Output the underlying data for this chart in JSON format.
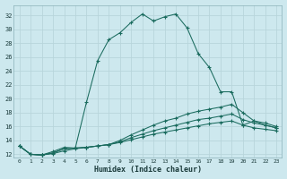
{
  "xlabel": "Humidex (Indice chaleur)",
  "background_color": "#cde8ee",
  "grid_color": "#b8d5db",
  "line_color": "#1a6b5e",
  "xlim": [
    -0.5,
    23.5
  ],
  "ylim": [
    11.5,
    33.5
  ],
  "yticks": [
    12,
    14,
    16,
    18,
    20,
    22,
    24,
    26,
    28,
    30,
    32
  ],
  "xticks": [
    0,
    1,
    2,
    3,
    4,
    5,
    6,
    7,
    8,
    9,
    10,
    11,
    12,
    13,
    14,
    15,
    16,
    17,
    18,
    19,
    20,
    21,
    22,
    23
  ],
  "line1_x": [
    0,
    1,
    2,
    3,
    4,
    5,
    6,
    7,
    8,
    9,
    10,
    11,
    12,
    13,
    14,
    15,
    16,
    17,
    18,
    19,
    20,
    21,
    22,
    23
  ],
  "line1_y": [
    13.2,
    12.0,
    11.9,
    12.4,
    13.0,
    12.9,
    19.5,
    25.5,
    28.5,
    29.5,
    31.0,
    32.2,
    31.2,
    31.8,
    32.2,
    30.2,
    26.5,
    24.5,
    21.0,
    21.0,
    16.2,
    16.8,
    16.2,
    15.8
  ],
  "line2_x": [
    0,
    1,
    2,
    3,
    4,
    5,
    6,
    7,
    8,
    9,
    10,
    11,
    12,
    13,
    14,
    15,
    16,
    17,
    18,
    19,
    20,
    21,
    22,
    23
  ],
  "line2_y": [
    13.2,
    12.0,
    11.9,
    12.2,
    12.8,
    12.9,
    13.0,
    13.2,
    13.4,
    14.0,
    14.8,
    15.5,
    16.2,
    16.8,
    17.2,
    17.8,
    18.2,
    18.5,
    18.8,
    19.2,
    18.0,
    16.8,
    16.5,
    16.0
  ],
  "line3_x": [
    0,
    1,
    2,
    3,
    4,
    5,
    6,
    7,
    8,
    9,
    10,
    11,
    12,
    13,
    14,
    15,
    16,
    17,
    18,
    19,
    20,
    21,
    22,
    23
  ],
  "line3_y": [
    13.2,
    12.0,
    11.9,
    12.2,
    12.8,
    12.9,
    13.0,
    13.2,
    13.4,
    13.8,
    14.4,
    14.9,
    15.4,
    15.8,
    16.2,
    16.6,
    17.0,
    17.2,
    17.5,
    17.8,
    17.0,
    16.5,
    16.2,
    15.8
  ],
  "line4_x": [
    0,
    1,
    2,
    3,
    4,
    5,
    6,
    7,
    8,
    9,
    10,
    11,
    12,
    13,
    14,
    15,
    16,
    17,
    18,
    19,
    20,
    21,
    22,
    23
  ],
  "line4_y": [
    13.2,
    12.0,
    11.9,
    12.1,
    12.5,
    12.8,
    13.0,
    13.2,
    13.4,
    13.7,
    14.1,
    14.5,
    14.9,
    15.2,
    15.5,
    15.8,
    16.1,
    16.4,
    16.6,
    16.8,
    16.2,
    15.8,
    15.6,
    15.4
  ]
}
